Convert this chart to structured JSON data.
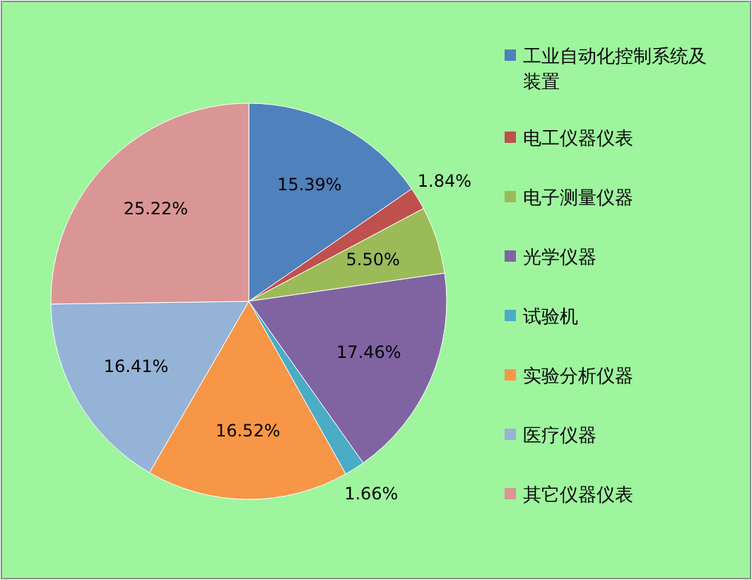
{
  "chart_data": {
    "type": "pie",
    "categories": [
      "工业自动化控制系统及装置",
      "电工仪器仪表",
      "电子测量仪器",
      "光学仪器",
      "试验机",
      "实验分析仪器",
      "医疗仪器",
      "其它仪器仪表"
    ],
    "values": [
      15.39,
      1.84,
      5.5,
      17.46,
      1.66,
      16.52,
      16.41,
      25.22
    ],
    "value_labels": [
      "15.39%",
      "1.84%",
      "5.50%",
      "17.46%",
      "1.66%",
      "16.52%",
      "16.41%",
      "25.22%"
    ],
    "colors": [
      "#4f81bd",
      "#c0504d",
      "#9bbb59",
      "#8064a2",
      "#4bacc6",
      "#f79646",
      "#95b3d7",
      "#d99694"
    ],
    "legend": "right"
  }
}
